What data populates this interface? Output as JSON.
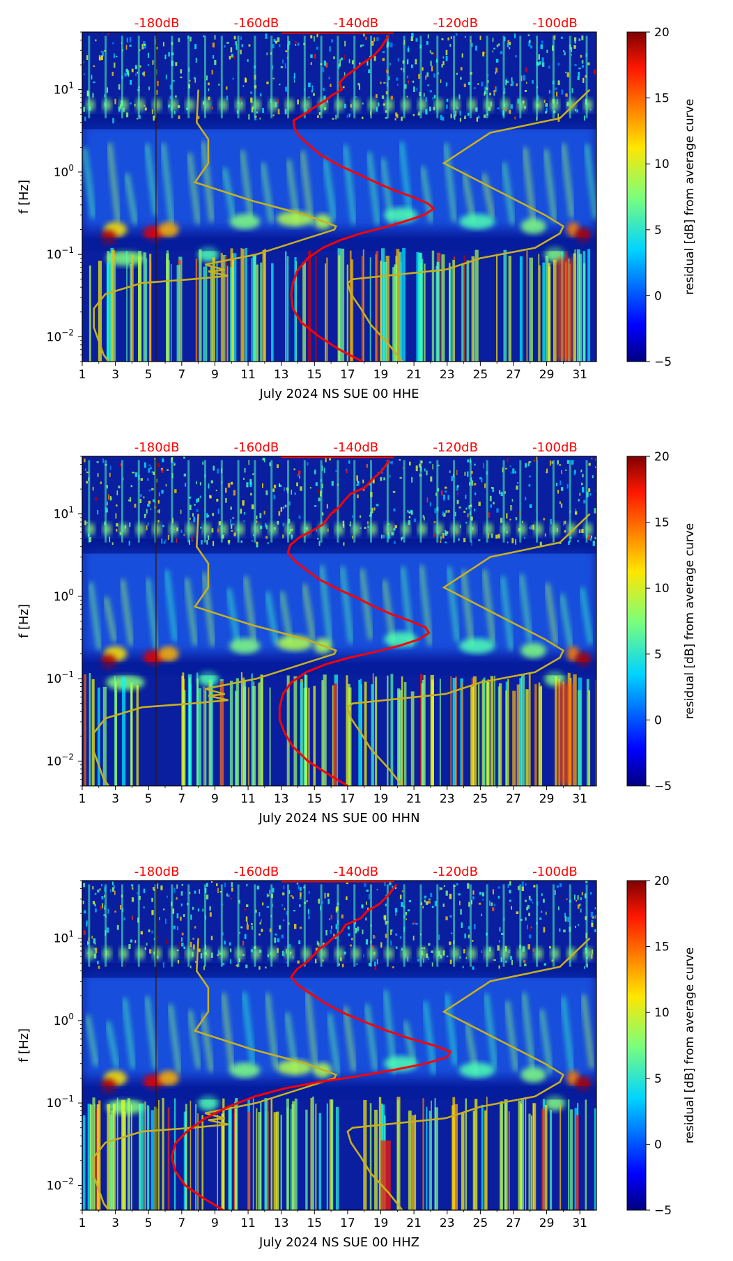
{
  "colors": {
    "noise_model": "#c8b020",
    "median_curve": "#ff0000",
    "top_labels": "#ff0000",
    "axis": "#000000"
  },
  "chart_data": [
    {
      "type": "heatmap",
      "title": "",
      "xlabel": "July 2024 NS SUE 00 HHE",
      "ylabel": "f [Hz]",
      "xlim": [
        1,
        32
      ],
      "ylim": [
        0.005,
        50
      ],
      "yscale": "log",
      "x_ticks": [
        1,
        3,
        5,
        7,
        9,
        11,
        13,
        15,
        17,
        19,
        21,
        23,
        25,
        27,
        29,
        31
      ],
      "y_ticks": [
        {
          "value": 0.01,
          "base": "10",
          "exp": "−2"
        },
        {
          "value": 0.1,
          "base": "10",
          "exp": "−1"
        },
        {
          "value": 1,
          "base": "10",
          "exp": "0"
        },
        {
          "value": 10,
          "base": "10",
          "exp": "1"
        }
      ],
      "top_axis_labels": [
        "-180dB",
        "-160dB",
        "-140dB",
        "-120dB",
        "-100dB"
      ],
      "colorbar": {
        "label": "residual [dB] from average curve",
        "min": -5,
        "max": 20,
        "ticks": [
          -5,
          0,
          5,
          10,
          15,
          20
        ]
      },
      "median_curve_x_day": [
        17.9,
        16.5,
        15.3,
        14.2,
        13.7,
        13.6,
        13.7,
        14.0,
        14.6,
        15.5,
        16.6,
        17.8,
        19.1,
        20.4,
        21.6,
        22.2,
        21.8,
        20.9,
        19.8,
        18.7,
        17.6,
        16.5,
        15.4,
        14.7,
        14.1,
        13.8,
        13.9,
        14.5,
        15.2,
        15.9,
        16.2,
        16.4,
        16.7,
        17.1,
        17.6,
        18.0,
        18.5,
        19.1,
        19.7
      ],
      "median_curve_freq": [
        0.005,
        0.007,
        0.01,
        0.015,
        0.022,
        0.032,
        0.045,
        0.065,
        0.09,
        0.12,
        0.15,
        0.18,
        0.21,
        0.25,
        0.3,
        0.36,
        0.42,
        0.5,
        0.6,
        0.75,
        0.95,
        1.2,
        1.6,
        2.1,
        2.7,
        3.4,
        4.2,
        5.2,
        6.3,
        7.4,
        8.6,
        10,
        12,
        14.5,
        17.5,
        21,
        26,
        33,
        45
      ]
    },
    {
      "type": "heatmap",
      "title": "",
      "xlabel": "July 2024 NS SUE 00 HHN",
      "ylabel": "f [Hz]",
      "xlim": [
        1,
        32
      ],
      "ylim": [
        0.005,
        50
      ],
      "yscale": "log",
      "x_ticks": [
        1,
        3,
        5,
        7,
        9,
        11,
        13,
        15,
        17,
        19,
        21,
        23,
        25,
        27,
        29,
        31
      ],
      "y_ticks": [
        {
          "value": 0.01,
          "base": "10",
          "exp": "−2"
        },
        {
          "value": 0.1,
          "base": "10",
          "exp": "−1"
        },
        {
          "value": 1,
          "base": "10",
          "exp": "0"
        },
        {
          "value": 10,
          "base": "10",
          "exp": "1"
        }
      ],
      "top_axis_labels": [
        "-180dB",
        "-160dB",
        "-140dB",
        "-120dB",
        "-100dB"
      ],
      "colorbar": {
        "label": "residual [dB] from average curve",
        "min": -5,
        "max": 20,
        "ticks": [
          -5,
          0,
          5,
          10,
          15,
          20
        ]
      },
      "median_curve_x_day": [
        17.0,
        15.8,
        14.6,
        13.7,
        13.2,
        12.9,
        12.9,
        13.1,
        13.6,
        14.5,
        15.7,
        17.1,
        18.6,
        20.1,
        21.3,
        21.9,
        21.7,
        20.8,
        19.7,
        18.6,
        17.6,
        16.5,
        15.3,
        14.5,
        13.8,
        13.4,
        13.5,
        14.2,
        14.9,
        15.5,
        15.9,
        16.2,
        16.6,
        17.0,
        17.4,
        17.8,
        18.3,
        18.9,
        19.6
      ],
      "median_curve_freq": [
        0.005,
        0.007,
        0.01,
        0.015,
        0.022,
        0.032,
        0.045,
        0.065,
        0.09,
        0.12,
        0.15,
        0.18,
        0.21,
        0.25,
        0.3,
        0.36,
        0.42,
        0.5,
        0.6,
        0.75,
        0.95,
        1.2,
        1.6,
        2.1,
        2.7,
        3.4,
        4.2,
        5.2,
        6.3,
        7.4,
        8.6,
        10,
        12,
        14.5,
        17.5,
        21,
        26,
        33,
        45
      ]
    },
    {
      "type": "heatmap",
      "title": "",
      "xlabel": "July 2024 NS SUE 00 HHZ",
      "ylabel": "f [Hz]",
      "xlim": [
        1,
        32
      ],
      "ylim": [
        0.005,
        50
      ],
      "yscale": "log",
      "x_ticks": [
        1,
        3,
        5,
        7,
        9,
        11,
        13,
        15,
        17,
        19,
        21,
        23,
        25,
        27,
        29,
        31
      ],
      "y_ticks": [
        {
          "value": 0.01,
          "base": "10",
          "exp": "−2"
        },
        {
          "value": 0.1,
          "base": "10",
          "exp": "−1"
        },
        {
          "value": 1,
          "base": "10",
          "exp": "0"
        },
        {
          "value": 10,
          "base": "10",
          "exp": "1"
        }
      ],
      "top_axis_labels": [
        "-180dB",
        "-160dB",
        "-140dB",
        "-120dB",
        "-100dB"
      ],
      "colorbar": {
        "label": "residual [dB] from average curve",
        "min": -5,
        "max": 20,
        "ticks": [
          -5,
          0,
          5,
          10,
          15,
          20
        ]
      },
      "median_curve_x_day": [
        9.5,
        8.3,
        7.2,
        6.6,
        6.4,
        6.6,
        7.3,
        8.4,
        9.8,
        11.4,
        13.2,
        15.3,
        17.5,
        19.7,
        21.7,
        23.0,
        23.2,
        22.2,
        20.8,
        19.4,
        18.1,
        16.9,
        15.7,
        14.8,
        14.0,
        13.6,
        13.8,
        14.4,
        15.0,
        15.5,
        15.9,
        16.2,
        16.6,
        17.1,
        17.7,
        18.3,
        18.9,
        19.5,
        20.1
      ],
      "median_curve_freq": [
        0.005,
        0.007,
        0.01,
        0.015,
        0.022,
        0.032,
        0.045,
        0.065,
        0.09,
        0.12,
        0.15,
        0.18,
        0.21,
        0.25,
        0.3,
        0.36,
        0.42,
        0.5,
        0.6,
        0.75,
        0.95,
        1.2,
        1.6,
        2.1,
        2.7,
        3.4,
        4.2,
        5.2,
        6.3,
        7.4,
        8.6,
        10,
        12,
        14.5,
        17.5,
        21,
        26,
        33,
        45
      ]
    }
  ]
}
